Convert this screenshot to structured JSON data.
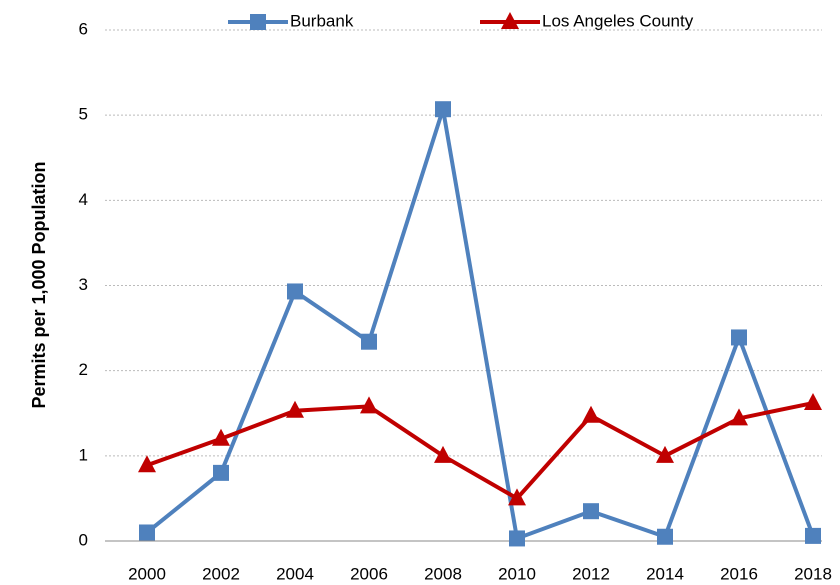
{
  "chart_data": {
    "type": "line",
    "y_label": "Permits per 1,000 Population",
    "categories": [
      "2000",
      "2002",
      "2004",
      "2006",
      "2008",
      "2010",
      "2012",
      "2014",
      "2016",
      "2018"
    ],
    "series": [
      {
        "name": "Burbank",
        "color": "#4f81bd",
        "marker": "square",
        "values": [
          0.1,
          0.8,
          2.93,
          2.34,
          5.07,
          0.03,
          0.35,
          0.05,
          2.39,
          0.06
        ]
      },
      {
        "name": "Los Angeles County",
        "color": "#c00000",
        "marker": "triangle",
        "values": [
          0.89,
          1.2,
          1.53,
          1.58,
          1.0,
          0.5,
          1.47,
          1.0,
          1.44,
          1.62
        ]
      }
    ],
    "ylim": [
      0,
      6
    ],
    "yticks": [
      0,
      1,
      2,
      3,
      4,
      5,
      6
    ],
    "grid": true
  }
}
